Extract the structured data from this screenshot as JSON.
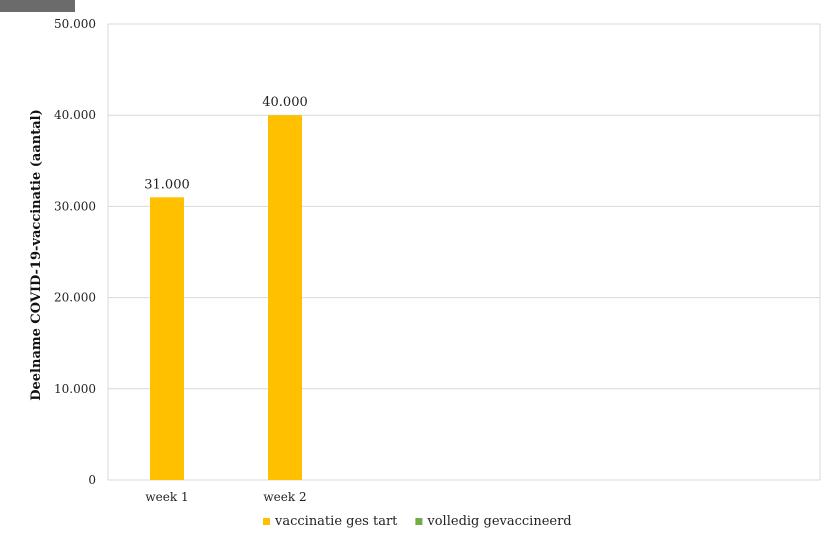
{
  "chart_data": {
    "type": "bar",
    "categories": [
      "week 1",
      "week 2"
    ],
    "series": [
      {
        "name": "vaccinatie ges tart",
        "color": "#FFC000",
        "values": [
          31000,
          40000
        ]
      },
      {
        "name": "volledig gevaccineerd",
        "color": "#70AD47",
        "values": [
          null,
          null
        ]
      }
    ],
    "data_labels": [
      "31.000",
      "40.000"
    ],
    "ylabel": "Deelname COVID-19-vaccinatie (aantal)",
    "ylim": [
      0,
      50000
    ],
    "yticks": [
      "0",
      "10.000",
      "20.000",
      "30.000",
      "40.000",
      "50.000"
    ],
    "grid": true,
    "legend_position": "bottom"
  }
}
